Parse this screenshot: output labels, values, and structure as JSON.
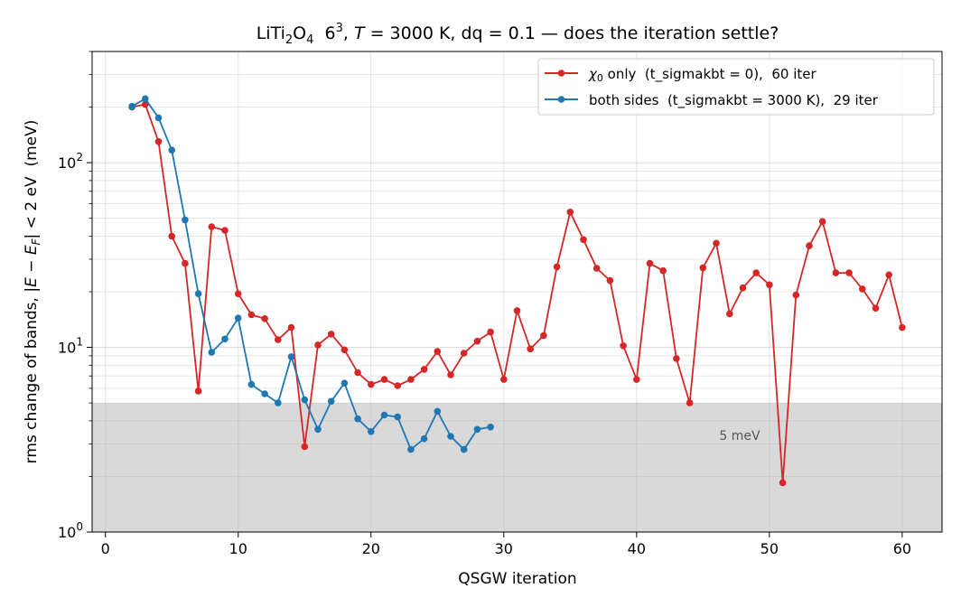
{
  "chart_data": {
    "type": "line",
    "title": "LiTi₂O₄  6³, T = 3000 K, dq = 0.1 — does the iteration settle?",
    "title_parts": {
      "pre": "LiTi",
      "sub1": "2",
      "mid": "O",
      "sub2": "4",
      "gap": "  6",
      "sup": "3",
      "comma": ", ",
      "T": "T",
      "rest": " = 3000 K, dq = 0.1 — does the iteration settle?"
    },
    "xlabel": "QSGW iteration",
    "ylabel": "rms change of bands, |E − E_F| < 2 eV  (meV)",
    "ylabel_parts": {
      "pre": "rms change of bands, |",
      "E1": "E",
      "minus": " − ",
      "E2": "E",
      "sub": "F",
      "post": "| < 2 eV  (meV)"
    },
    "xlim": [
      -1,
      63
    ],
    "ylim": [
      1,
      400
    ],
    "yscale": "log",
    "x_ticks": [
      0,
      10,
      20,
      30,
      40,
      50,
      60
    ],
    "y_ticks": [
      {
        "value": 1,
        "base": "10",
        "exp": "0"
      },
      {
        "value": 10,
        "base": "10",
        "exp": "1"
      },
      {
        "value": 100,
        "base": "10",
        "exp": "2"
      }
    ],
    "grid": true,
    "legend_position": "top-right",
    "threshold": {
      "value": 5,
      "label": "5 meV",
      "color": "#d9d9d9"
    },
    "series": [
      {
        "name": "χ₀ only  (t_sigmakbt = 0),  60 iter",
        "name_parts": {
          "sym": "χ",
          "sub": "0",
          "rest": " only  (t_sigmakbt = 0),  60 iter"
        },
        "color": "#d62728",
        "x": [
          2,
          3,
          4,
          5,
          6,
          7,
          8,
          9,
          10,
          11,
          12,
          13,
          14,
          15,
          16,
          17,
          18,
          19,
          20,
          21,
          22,
          23,
          24,
          25,
          26,
          27,
          28,
          29,
          30,
          31,
          32,
          33,
          34,
          35,
          36,
          37,
          38,
          39,
          40,
          41,
          42,
          43,
          44,
          45,
          46,
          47,
          48,
          49,
          50,
          51,
          52,
          53,
          54,
          55,
          56,
          57,
          58,
          59,
          60
        ],
        "y": [
          200,
          207,
          130,
          40,
          28.5,
          5.8,
          45,
          43,
          19.5,
          15,
          14.3,
          11,
          12.8,
          2.9,
          10.3,
          11.8,
          9.7,
          7.3,
          6.3,
          6.7,
          6.2,
          6.7,
          7.6,
          9.5,
          7.1,
          9.3,
          10.8,
          12.1,
          6.7,
          15.8,
          9.8,
          11.6,
          27.3,
          54,
          38.3,
          26.8,
          23,
          10.2,
          6.7,
          28.5,
          26,
          8.7,
          5,
          27,
          36.6,
          15.2,
          21,
          25.3,
          21.8,
          1.85,
          19.2,
          35.5,
          48,
          25.3,
          25.3,
          20.7,
          16.3,
          24.7,
          12.8
        ]
      },
      {
        "name": "both sides  (t_sigmakbt = 3000 K),  29 iter",
        "color": "#1f77b4",
        "x": [
          2,
          3,
          4,
          5,
          6,
          7,
          8,
          9,
          10,
          11,
          12,
          13,
          14,
          15,
          16,
          17,
          18,
          19,
          20,
          21,
          22,
          23,
          24,
          25,
          26,
          27,
          28,
          29
        ],
        "y": [
          202,
          222,
          175,
          117,
          49,
          19.5,
          9.4,
          11.1,
          14.4,
          6.3,
          5.6,
          5,
          8.9,
          5.2,
          3.6,
          5.1,
          6.4,
          4.1,
          3.5,
          4.3,
          4.2,
          2.8,
          3.2,
          4.5,
          3.3,
          2.8,
          3.6,
          3.7
        ]
      }
    ]
  }
}
